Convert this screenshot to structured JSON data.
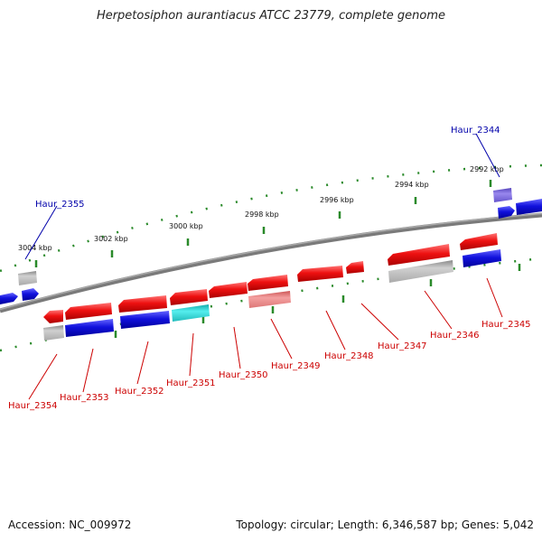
{
  "title": "Herpetosiphon aurantiacus ATCC 23779, complete genome",
  "accession": "Accession: NC_009972",
  "summary": "Topology: circular; Length: 6,346,587 bp; Genes: 5,042",
  "colors": {
    "backbone": "#7a7a7a",
    "tick": "#2a8a2a",
    "red": "#ee1111",
    "blue": "#1111dd",
    "gray": "#b5b5b5",
    "cyan": "#22cccc",
    "pink": "#ee8888",
    "purple": "#7766cc",
    "label_red": "#cc0000",
    "label_blue": "#0000aa"
  },
  "ruler": [
    "3004 kbp",
    "3002 kbp",
    "3000 kbp",
    "2998 kbp",
    "2996 kbp",
    "2994 kbp",
    "2992 kbp"
  ],
  "genes_top": [
    "Haur_2355",
    "Haur_2344"
  ],
  "genes_bottom": [
    "Haur_2354",
    "Haur_2353",
    "Haur_2352",
    "Haur_2351",
    "Haur_2350",
    "Haur_2349",
    "Haur_2348",
    "Haur_2347",
    "Haur_2346",
    "Haur_2345"
  ]
}
